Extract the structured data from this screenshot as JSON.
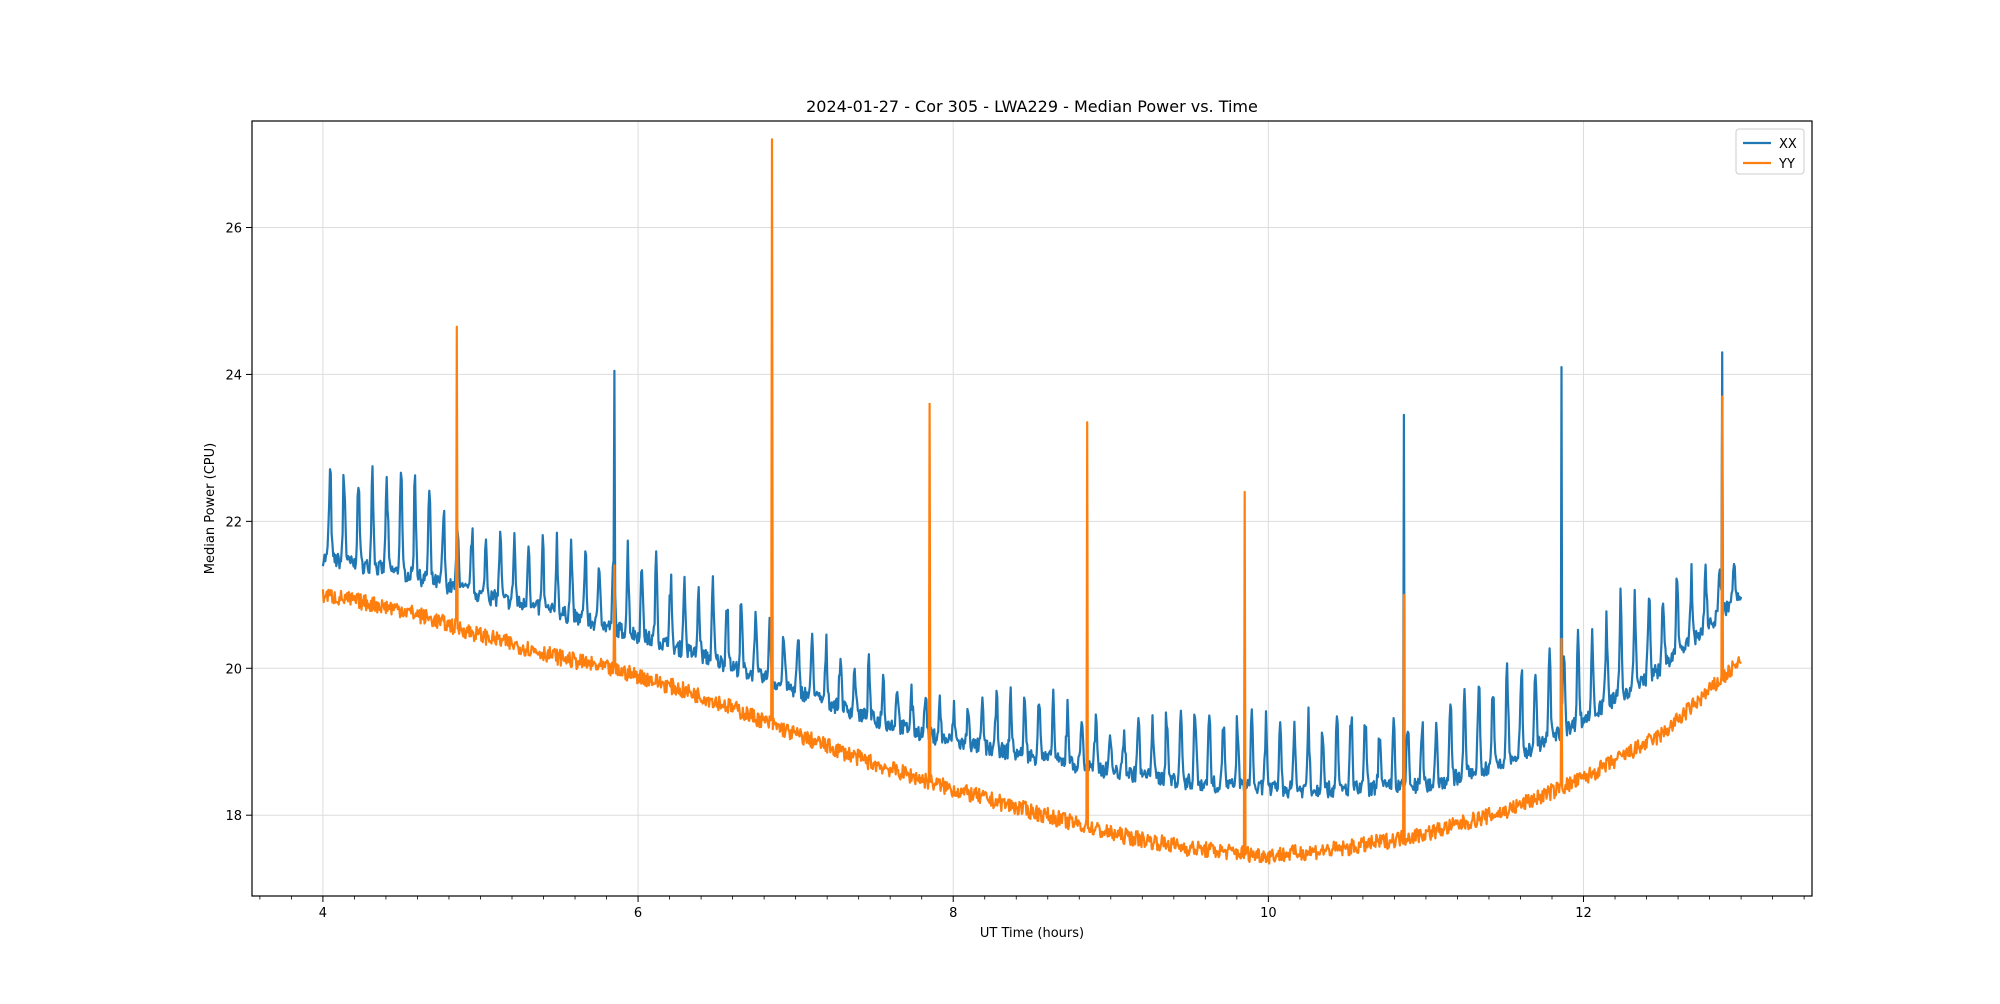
{
  "chart_data": {
    "type": "line",
    "title": "2024-01-27 - Cor 305 - LWA229 - Median Power vs. Time",
    "xlabel": "UT Time (hours)",
    "ylabel": "Median Power (CPU)",
    "xlim": [
      3.55,
      13.45
    ],
    "ylim": [
      16.9,
      27.45
    ],
    "xticks": [
      4,
      6,
      8,
      10,
      12
    ],
    "yticks": [
      18,
      20,
      22,
      24,
      26
    ],
    "x_minor_step": 0.2,
    "grid": true,
    "legend_position": "top-right",
    "x_start": 4.0,
    "x_end": 13.0,
    "series": [
      {
        "name": "XX",
        "color": "#1f77b4",
        "baseline": [
          [
            4.0,
            21.5
          ],
          [
            4.5,
            21.3
          ],
          [
            5.0,
            21.0
          ],
          [
            5.5,
            20.75
          ],
          [
            6.0,
            20.45
          ],
          [
            6.5,
            20.1
          ],
          [
            7.0,
            19.7
          ],
          [
            7.5,
            19.3
          ],
          [
            8.0,
            19.0
          ],
          [
            8.5,
            18.8
          ],
          [
            9.0,
            18.6
          ],
          [
            9.5,
            18.45
          ],
          [
            10.0,
            18.35
          ],
          [
            10.5,
            18.35
          ],
          [
            11.0,
            18.4
          ],
          [
            11.5,
            18.7
          ],
          [
            12.0,
            19.3
          ],
          [
            12.5,
            20.0
          ],
          [
            13.0,
            21.0
          ]
        ],
        "spike_period": 0.09,
        "spike_envelope": [
          [
            4.0,
            1.5
          ],
          [
            4.5,
            1.6
          ],
          [
            5.0,
            1.0
          ],
          [
            5.5,
            1.1
          ],
          [
            6.0,
            1.3
          ],
          [
            6.5,
            1.1
          ],
          [
            7.0,
            0.9
          ],
          [
            7.5,
            0.8
          ],
          [
            8.0,
            0.5
          ],
          [
            8.5,
            1.1
          ],
          [
            9.0,
            0.7
          ],
          [
            9.5,
            1.3
          ],
          [
            10.0,
            1.0
          ],
          [
            10.5,
            1.2
          ],
          [
            11.0,
            1.0
          ],
          [
            11.5,
            1.5
          ],
          [
            12.0,
            1.4
          ],
          [
            12.5,
            1.4
          ],
          [
            13.0,
            0.6
          ]
        ],
        "rfi_spikes": [
          {
            "x": 5.85,
            "y": 24.05
          },
          {
            "x": 10.86,
            "y": 23.45
          },
          {
            "x": 11.86,
            "y": 24.1
          },
          {
            "x": 12.88,
            "y": 24.3
          }
        ]
      },
      {
        "name": "YY",
        "color": "#ff7f0e",
        "baseline": [
          [
            4.0,
            21.0
          ],
          [
            4.5,
            20.8
          ],
          [
            5.0,
            20.45
          ],
          [
            5.5,
            20.15
          ],
          [
            6.0,
            19.9
          ],
          [
            6.5,
            19.55
          ],
          [
            7.0,
            19.1
          ],
          [
            7.5,
            18.7
          ],
          [
            8.0,
            18.35
          ],
          [
            8.5,
            18.05
          ],
          [
            9.0,
            17.75
          ],
          [
            9.5,
            17.55
          ],
          [
            10.0,
            17.45
          ],
          [
            10.5,
            17.55
          ],
          [
            11.0,
            17.75
          ],
          [
            11.5,
            18.05
          ],
          [
            12.0,
            18.5
          ],
          [
            12.5,
            19.1
          ],
          [
            13.0,
            20.1
          ]
        ],
        "rfi_spikes": [
          {
            "x": 4.85,
            "y": 24.65
          },
          {
            "x": 5.85,
            "y": 21.4
          },
          {
            "x": 6.85,
            "y": 27.2
          },
          {
            "x": 7.85,
            "y": 23.6
          },
          {
            "x": 8.85,
            "y": 23.35
          },
          {
            "x": 9.85,
            "y": 22.4
          },
          {
            "x": 10.86,
            "y": 21.0
          },
          {
            "x": 11.86,
            "y": 20.4
          },
          {
            "x": 12.88,
            "y": 23.7
          }
        ]
      }
    ]
  }
}
